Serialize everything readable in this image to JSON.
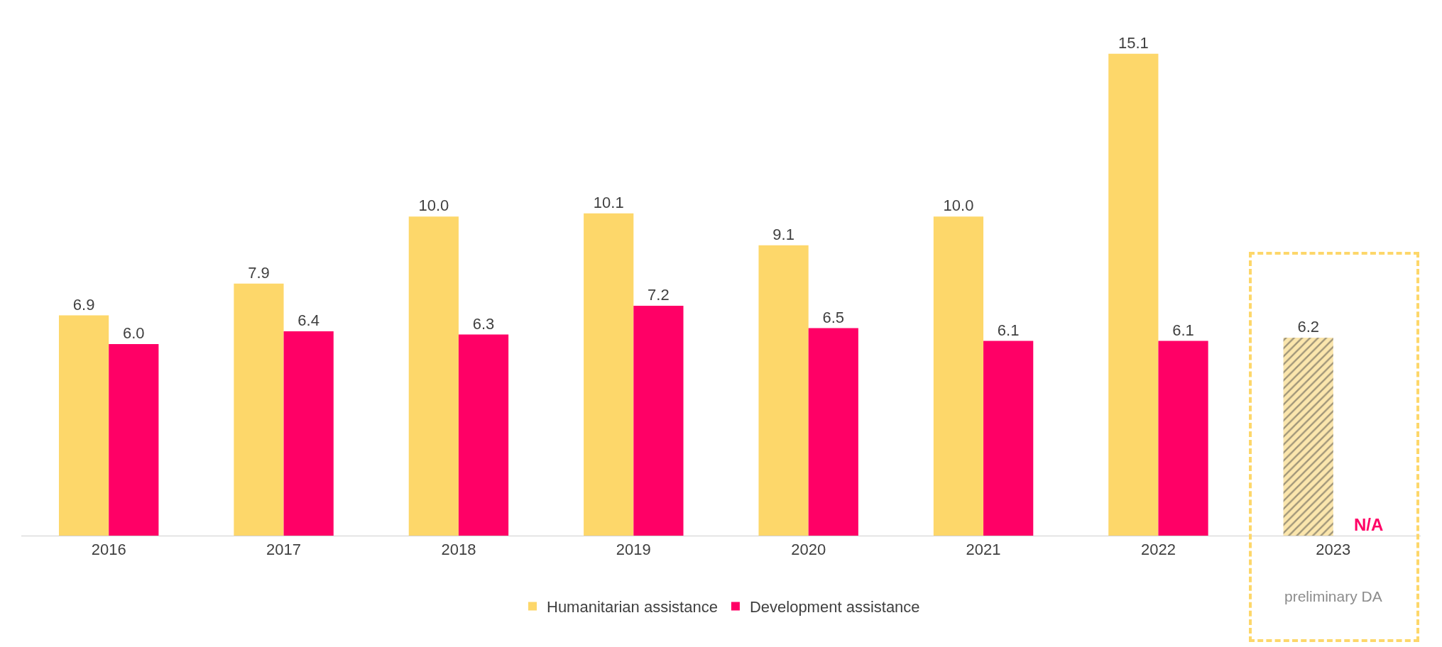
{
  "chart_data": {
    "type": "bar",
    "categories": [
      "2016",
      "2017",
      "2018",
      "2019",
      "2020",
      "2021",
      "2022",
      "2023"
    ],
    "series": [
      {
        "name": "Humanitarian assistance",
        "color": "#fdd76a",
        "colors": [
          "#fdd76a",
          "#fdd76a",
          "#fdd76a",
          "#fdd76a",
          "#fdd76a",
          "#fdd76a",
          "#fdd76a",
          "#fbe6ad"
        ],
        "values": [
          6.9,
          7.9,
          10.0,
          10.1,
          9.1,
          10.0,
          15.1,
          6.2
        ],
        "value_labels": [
          "6.9",
          "7.9",
          "10.0",
          "10.1",
          "9.1",
          "10.0",
          "15.1",
          "6.2"
        ]
      },
      {
        "name": "Development assistance",
        "color": "#ff0066",
        "values": [
          6.0,
          6.4,
          6.3,
          7.2,
          6.5,
          6.1,
          6.1,
          null
        ],
        "value_labels": [
          "6.0",
          "6.4",
          "6.3",
          "7.2",
          "6.5",
          "6.1",
          "6.1",
          null
        ]
      }
    ],
    "tick_labels": "x",
    "grid": false,
    "legend": "bottom",
    "annotations": [
      {
        "text": "N/A",
        "x": "2023",
        "y": 0
      },
      "preliminary DA"
    ]
  }
}
